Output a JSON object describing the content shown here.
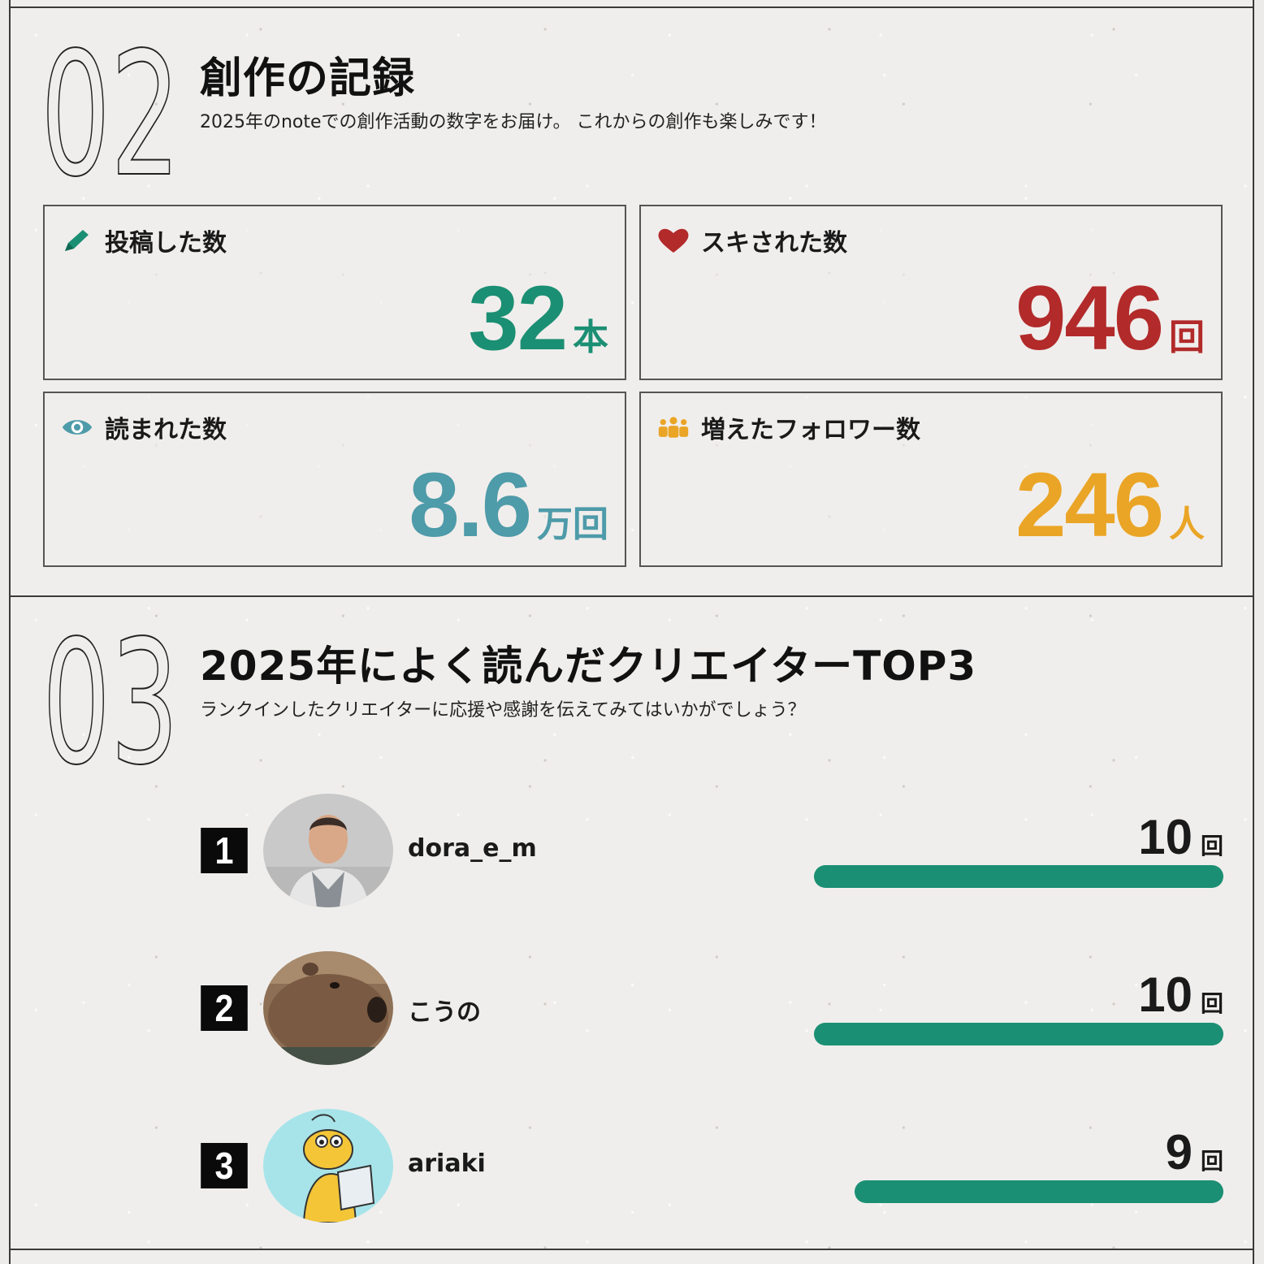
{
  "section02": {
    "number": "02",
    "title": "創作の記録",
    "subtitle": "2025年のnoteでの創作活動の数字をお届け。 これからの創作も楽しみです！"
  },
  "stats": [
    {
      "label": "投稿した数",
      "value": "32",
      "unit": "本",
      "icon": "pencil-icon",
      "color": "#1b8f73"
    },
    {
      "label": "スキされた数",
      "value": "946",
      "unit": "回",
      "icon": "heart-icon",
      "color": "#b22a2a"
    },
    {
      "label": "読まれた数",
      "value": "8.6",
      "unit": "万回",
      "icon": "eye-icon",
      "color": "#4e9ba9"
    },
    {
      "label": "増えたフォロワー数",
      "value": "246",
      "unit": "人",
      "icon": "people-icon",
      "color": "#eaa526"
    }
  ],
  "section03": {
    "number": "03",
    "title": "2025年によく読んだクリエイターTOP3",
    "subtitle": "ランクインしたクリエイターに応援や感謝を伝えてみてはいかがでしょう？"
  },
  "ranking": [
    {
      "rank": "1",
      "name": "dora_e_m",
      "count": "10",
      "unit": "回",
      "fraction": 1.0
    },
    {
      "rank": "2",
      "name": "こうの",
      "count": "10",
      "unit": "回",
      "fraction": 1.0
    },
    {
      "rank": "3",
      "name": "ariaki",
      "count": "9",
      "unit": "回",
      "fraction": 0.9
    }
  ],
  "colors": {
    "accent_green": "#1b8f73",
    "red": "#b22a2a",
    "teal": "#4e9ba9",
    "orange": "#eaa526"
  }
}
